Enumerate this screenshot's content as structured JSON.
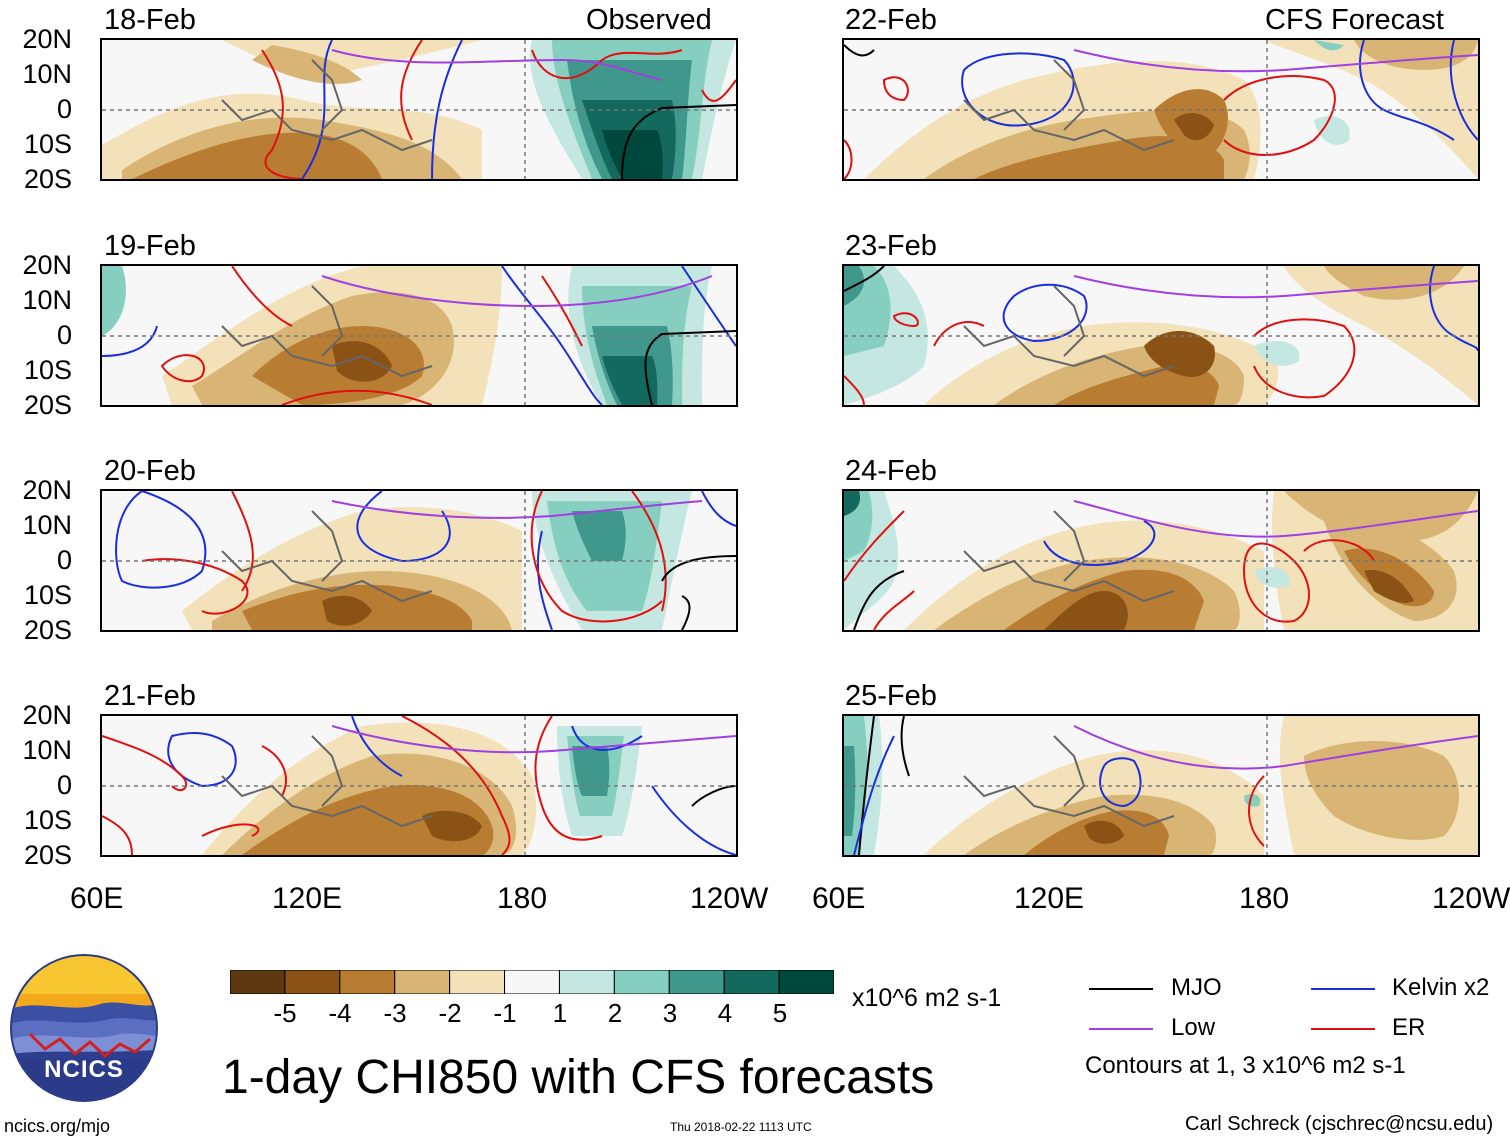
{
  "panels": {
    "observed": [
      {
        "date": "18-Feb",
        "header": "Observed"
      },
      {
        "date": "19-Feb"
      },
      {
        "date": "20-Feb"
      },
      {
        "date": "21-Feb"
      }
    ],
    "forecast": [
      {
        "date": "22-Feb",
        "header": "CFS Forecast"
      },
      {
        "date": "23-Feb"
      },
      {
        "date": "24-Feb"
      },
      {
        "date": "25-Feb"
      }
    ]
  },
  "lat_labels": [
    "20N",
    "10N",
    "0",
    "10S",
    "20S"
  ],
  "lon_labels": [
    "60E",
    "120E",
    "180",
    "120W"
  ],
  "colorbar": {
    "colors": [
      "#5e3810",
      "#8a5215",
      "#b87c32",
      "#d8b574",
      "#f3e1b9",
      "#f7f7f7",
      "#c4e8e1",
      "#86cfc0",
      "#40988d",
      "#13695e",
      "#00473c"
    ],
    "labels": [
      "-5",
      "-4",
      "-3",
      "-2",
      "-1",
      "1",
      "2",
      "3",
      "4",
      "5"
    ],
    "units": "x10^6 m2 s-1"
  },
  "legend": {
    "mjo": {
      "label": "MJO",
      "color": "#000000"
    },
    "low": {
      "label": "Low",
      "color": "#a040e0"
    },
    "kelvin": {
      "label": "Kelvin x2",
      "color": "#1a2ee0"
    },
    "er": {
      "label": "ER",
      "color": "#e01010"
    },
    "note": "Contours at 1, 3 x10^6 m2 s-1"
  },
  "logo": {
    "text": "NCICS"
  },
  "title": "1-day CHI850 with CFS forecasts",
  "footer": {
    "url": "ncics.org/mjo",
    "timestamp": "Thu 2018-02-22 1113 UTC",
    "author": "Carl Schreck (cjschrec@ncsu.edu)"
  }
}
